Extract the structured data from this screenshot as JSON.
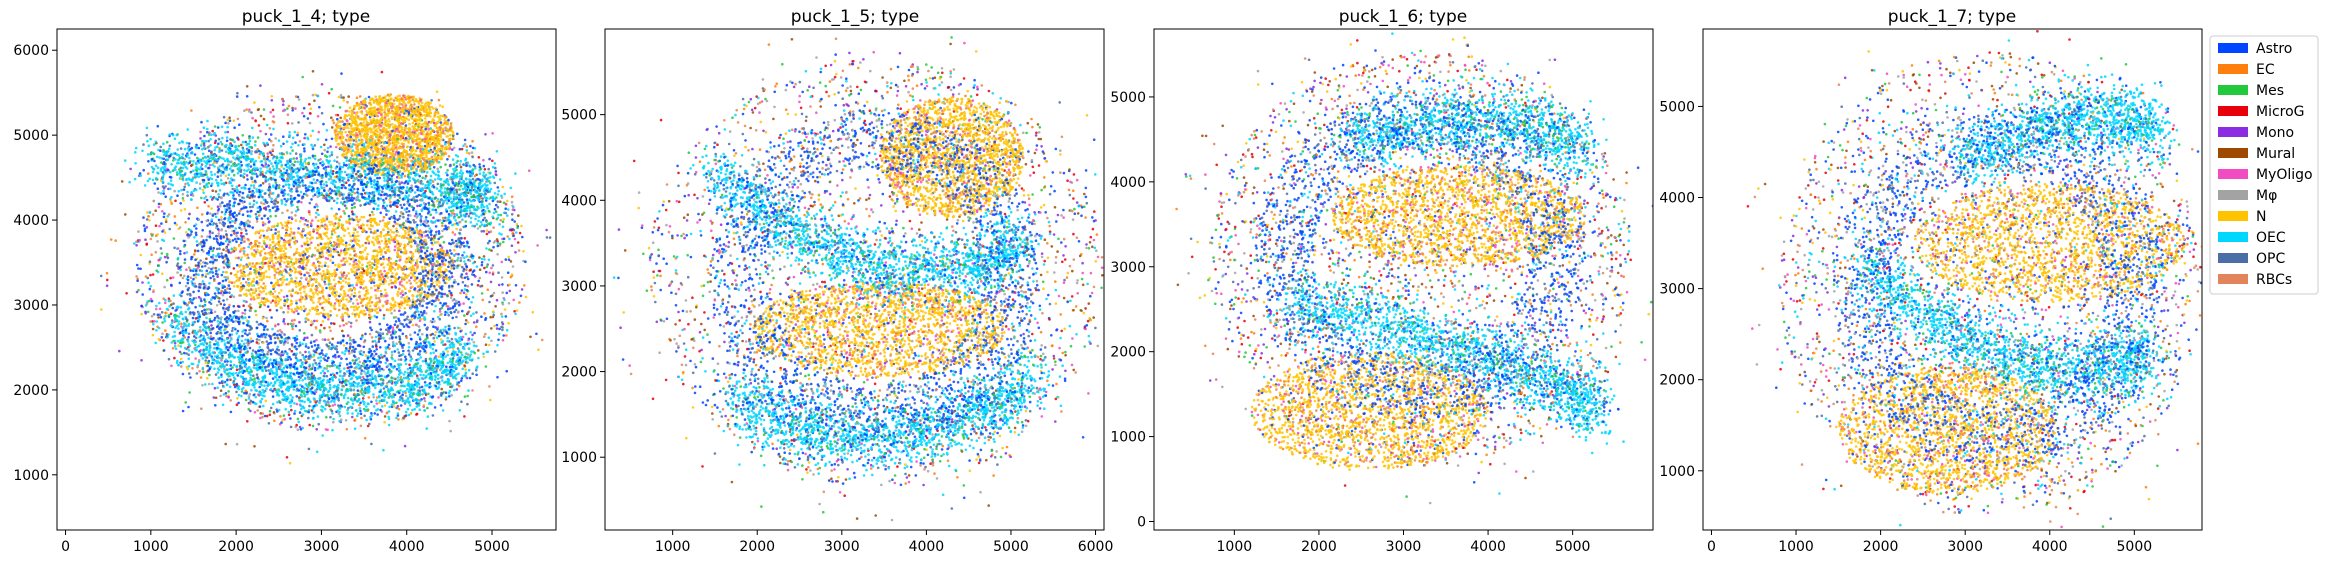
{
  "legend": {
    "entries": [
      "Astro",
      "EC",
      "Mes",
      "MicroG",
      "Mono",
      "Mural",
      "MyOligo",
      "Mφ",
      "N",
      "OEC",
      "OPC",
      "RBCs"
    ],
    "colors": [
      "#0045ff",
      "#ff7f0e",
      "#22c93d",
      "#e8000b",
      "#8b2be2",
      "#9f4800",
      "#f14cc1",
      "#a3a3a3",
      "#ffc400",
      "#00d7ff",
      "#4b6ea8",
      "#e3855c"
    ]
  },
  "chart_data": [
    {
      "type": "scatter",
      "title": "puck_1_4; type",
      "xlim": [
        -100,
        5750
      ],
      "ylim": [
        350,
        6250
      ],
      "xticks": [
        0,
        1000,
        2000,
        3000,
        4000,
        5000
      ],
      "yticks": [
        1000,
        2000,
        3000,
        4000,
        5000,
        6000
      ],
      "x": [
        {
          "category": "N",
          "region": "ellipse",
          "cx": 3200,
          "cy": 3450,
          "rx": 1350,
          "ry": 600
        },
        {
          "category": "N",
          "region": "ellipse",
          "cx": 3850,
          "cy": 5000,
          "rx": 700,
          "ry": 480
        },
        {
          "category": "OEC",
          "region": "band",
          "points": [
            [
              1000,
              4650
            ],
            [
              2000,
              4650
            ],
            [
              3300,
              4500
            ],
            [
              4500,
              4350
            ],
            [
              5000,
              4300
            ]
          ]
        },
        {
          "category": "OEC",
          "region": "band",
          "points": [
            [
              1200,
              2800
            ],
            [
              2200,
              2200
            ],
            [
              3000,
              2000
            ],
            [
              4000,
              2050
            ],
            [
              4700,
              2400
            ]
          ]
        },
        {
          "category": "Astro",
          "region": "ring",
          "cx": 3050,
          "cy": 3400,
          "rx": 2050,
          "ry": 1500
        }
      ],
      "extent": {
        "cx": 3100,
        "cy": 3500,
        "rx": 2300,
        "ry": 2000
      }
    },
    {
      "type": "scatter",
      "title": "puck_1_5; type",
      "xlim": [
        200,
        6100
      ],
      "ylim": [
        150,
        6000
      ],
      "xticks": [
        1000,
        2000,
        3000,
        4000,
        5000,
        6000
      ],
      "yticks": [
        1000,
        2000,
        3000,
        4000,
        5000
      ],
      "x": [
        {
          "category": "N",
          "region": "ellipse",
          "cx": 3450,
          "cy": 2500,
          "rx": 1500,
          "ry": 560
        },
        {
          "category": "N",
          "region": "ellipse",
          "cx": 4300,
          "cy": 4500,
          "rx": 850,
          "ry": 700
        },
        {
          "category": "OEC",
          "region": "band",
          "points": [
            [
              1500,
              4300
            ],
            [
              2500,
              3600
            ],
            [
              3400,
              3200
            ],
            [
              4500,
              3200
            ],
            [
              5200,
              3500
            ]
          ]
        },
        {
          "category": "OEC",
          "region": "band",
          "points": [
            [
              1700,
              1700
            ],
            [
              2600,
              1300
            ],
            [
              3600,
              1200
            ],
            [
              4600,
              1500
            ],
            [
              5300,
              2000
            ]
          ]
        },
        {
          "category": "Astro",
          "region": "ring",
          "cx": 3400,
          "cy": 3100,
          "rx": 2300,
          "ry": 2300
        }
      ],
      "extent": {
        "cx": 3400,
        "cy": 3150,
        "rx": 2700,
        "ry": 2500
      }
    },
    {
      "type": "scatter",
      "title": "puck_1_6; type",
      "xlim": [
        50,
        5950
      ],
      "ylim": [
        -100,
        5800
      ],
      "xticks": [
        1000,
        2000,
        3000,
        4000,
        5000
      ],
      "yticks": [
        0,
        1000,
        2000,
        3000,
        4000,
        5000
      ],
      "x": [
        {
          "category": "N",
          "region": "ellipse",
          "cx": 3650,
          "cy": 3600,
          "rx": 1500,
          "ry": 600
        },
        {
          "category": "N",
          "region": "ellipse",
          "cx": 2600,
          "cy": 1300,
          "rx": 1400,
          "ry": 700
        },
        {
          "category": "OEC",
          "region": "band",
          "points": [
            [
              1700,
              2600
            ],
            [
              2800,
              2300
            ],
            [
              3800,
              2000
            ],
            [
              4800,
              1600
            ],
            [
              5300,
              1300
            ]
          ]
        },
        {
          "category": "OEC",
          "region": "band",
          "points": [
            [
              2400,
              4500
            ],
            [
              3400,
              4700
            ],
            [
              4400,
              4700
            ],
            [
              5200,
              4400
            ]
          ]
        },
        {
          "category": "Astro",
          "region": "ring",
          "cx": 3200,
          "cy": 3100,
          "rx": 2300,
          "ry": 2300
        }
      ],
      "extent": {
        "cx": 3200,
        "cy": 3100,
        "rx": 2500,
        "ry": 2450
      }
    },
    {
      "type": "scatter",
      "title": "puck_1_7; type",
      "xlim": [
        -100,
        5800
      ],
      "ylim": [
        350,
        5850
      ],
      "xticks": [
        0,
        1000,
        2000,
        3000,
        4000,
        5000
      ],
      "yticks": [
        1000,
        2000,
        3000,
        4000,
        5000
      ],
      "x": [
        {
          "category": "N",
          "region": "ellipse",
          "cx": 4000,
          "cy": 3500,
          "rx": 1600,
          "ry": 650
        },
        {
          "category": "N",
          "region": "ellipse",
          "cx": 2800,
          "cy": 1450,
          "rx": 1300,
          "ry": 700
        },
        {
          "category": "OEC",
          "region": "band",
          "points": [
            [
              1800,
              3200
            ],
            [
              2700,
              2600
            ],
            [
              3600,
              2200
            ],
            [
              4500,
              2100
            ],
            [
              5200,
              2300
            ]
          ]
        },
        {
          "category": "OEC",
          "region": "band",
          "points": [
            [
              3000,
              4400
            ],
            [
              3900,
              4800
            ],
            [
              4700,
              4900
            ],
            [
              5300,
              4700
            ]
          ]
        },
        {
          "category": "Astro",
          "region": "ring",
          "cx": 3400,
          "cy": 3000,
          "rx": 2300,
          "ry": 2350
        }
      ],
      "extent": {
        "cx": 3300,
        "cy": 3050,
        "rx": 2500,
        "ry": 2550
      }
    }
  ]
}
